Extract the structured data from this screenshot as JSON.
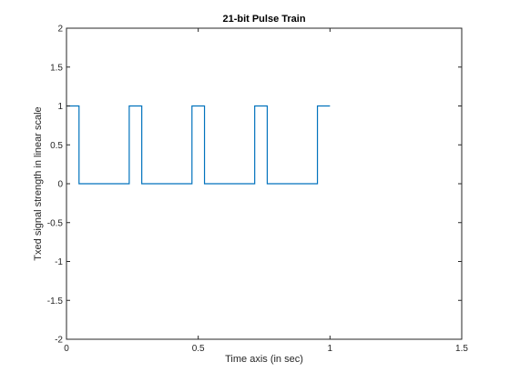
{
  "chart_data": {
    "type": "line",
    "title": "21-bit Pulse Train",
    "xlabel": "Time axis (in sec)",
    "ylabel": "Txed signal strength in linear scale",
    "xlim": [
      0,
      1.5
    ],
    "ylim": [
      -2,
      2
    ],
    "xticks": [
      0,
      0.5,
      1,
      1.5
    ],
    "xtick_labels": [
      "0",
      "0.5",
      "1",
      "1.5"
    ],
    "yticks": [
      -2,
      -1.5,
      -1,
      -0.5,
      0,
      0.5,
      1,
      1.5,
      2
    ],
    "ytick_labels": [
      "-2",
      "-1.5",
      "-1",
      "-0.5",
      "0",
      "0.5",
      "1",
      "1.5",
      "2"
    ],
    "grid": false,
    "line_color": "#0072BD",
    "series": [
      {
        "x": [
          0,
          0.0476,
          0.0476,
          0.2381,
          0.2381,
          0.2857,
          0.2857,
          0.4762,
          0.4762,
          0.5238,
          0.5238,
          0.7143,
          0.7143,
          0.7619,
          0.7619,
          0.9524,
          0.9524,
          1.0
        ],
        "y": [
          1,
          1,
          0,
          0,
          1,
          1,
          0,
          0,
          1,
          1,
          0,
          0,
          1,
          1,
          0,
          0,
          1,
          1
        ]
      }
    ]
  }
}
